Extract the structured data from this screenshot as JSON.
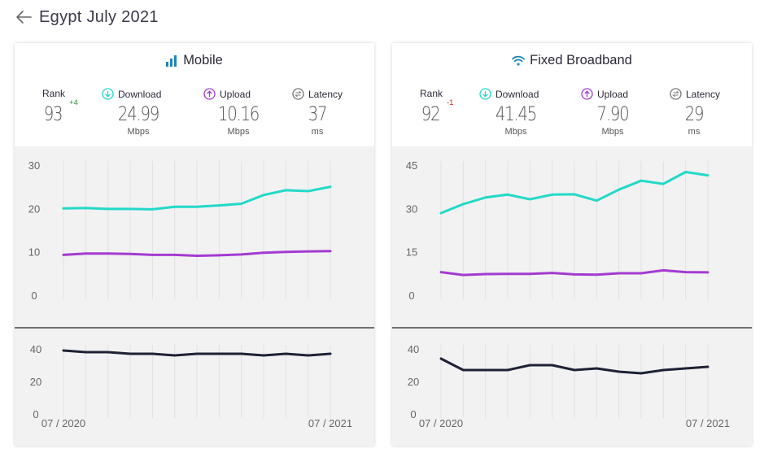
{
  "page": {
    "title": "Egypt July 2021"
  },
  "icons": {
    "back": "arrow-left-icon",
    "mobile": "signal-bars-icon",
    "fixed": "wifi-icon",
    "download": "arrow-down-circle-icon",
    "upload": "arrow-up-circle-icon",
    "latency": "exchange-circle-icon"
  },
  "colors": {
    "download": "#22d9c8",
    "upload": "#a43bd0",
    "latency": "#1f2136",
    "title_icon": "#1e86b8"
  },
  "cards": {
    "mobile": {
      "title": "Mobile",
      "rank": {
        "label": "Rank",
        "value": "93",
        "change": "+4"
      },
      "download": {
        "label": "Download",
        "value": "24.99",
        "unit": "Mbps"
      },
      "upload": {
        "label": "Upload",
        "value": "10.16",
        "unit": "Mbps"
      },
      "latency": {
        "label": "Latency",
        "value": "37",
        "unit": "ms"
      }
    },
    "fixed": {
      "title": "Fixed Broadband",
      "rank": {
        "label": "Rank",
        "value": "92",
        "change": "-1"
      },
      "download": {
        "label": "Download",
        "value": "41.45",
        "unit": "Mbps"
      },
      "upload": {
        "label": "Upload",
        "value": "7.90",
        "unit": "Mbps"
      },
      "latency": {
        "label": "Latency",
        "value": "29",
        "unit": "ms"
      }
    }
  },
  "chart_data": [
    {
      "type": "line",
      "x": [
        "07 / 2020",
        "",
        "",
        "",
        "",
        "",
        "",
        "",
        "",
        "",
        "",
        "",
        "07 / 2021"
      ],
      "speed": {
        "yticks": [
          "30",
          "20",
          "10",
          "0"
        ],
        "ylim": [
          0,
          30
        ],
        "series": [
          {
            "values": [
              20.0,
              20.1,
              19.9,
              19.9,
              19.8,
              20.4,
              20.4,
              20.7,
              21.1,
              23.1,
              24.2,
              24.0,
              24.99
            ]
          },
          {
            "values": [
              9.3,
              9.6,
              9.6,
              9.5,
              9.3,
              9.3,
              9.1,
              9.2,
              9.4,
              9.8,
              10.0,
              10.1,
              10.16
            ]
          }
        ]
      },
      "latency": {
        "yticks": [
          "40",
          "20",
          "0"
        ],
        "ylim": [
          0,
          40
        ],
        "series": [
          {
            "values": [
              39,
              38,
              38,
              37,
              37,
              36,
              37,
              37,
              37,
              36,
              37,
              36,
              37
            ]
          }
        ]
      }
    },
    {
      "type": "line",
      "x": [
        "07 / 2020",
        "",
        "",
        "",
        "",
        "",
        "",
        "",
        "",
        "",
        "",
        "",
        "07 / 2021"
      ],
      "speed": {
        "yticks": [
          "45",
          "30",
          "15",
          "0"
        ],
        "ylim": [
          0,
          45
        ],
        "series": [
          {
            "values": [
              28.4,
              31.5,
              33.8,
              34.8,
              33.2,
              34.8,
              34.9,
              32.7,
              36.5,
              39.6,
              38.5,
              42.6,
              41.45
            ]
          },
          {
            "values": [
              8.0,
              7.0,
              7.3,
              7.4,
              7.4,
              7.7,
              7.2,
              7.1,
              7.6,
              7.6,
              8.6,
              8.0,
              7.9
            ]
          }
        ]
      },
      "latency": {
        "yticks": [
          "40",
          "20",
          "0"
        ],
        "ylim": [
          0,
          40
        ],
        "series": [
          {
            "values": [
              34,
              27,
              27,
              27,
              30,
              30,
              27,
              28,
              26,
              25,
              27,
              28,
              29
            ]
          }
        ]
      }
    }
  ]
}
